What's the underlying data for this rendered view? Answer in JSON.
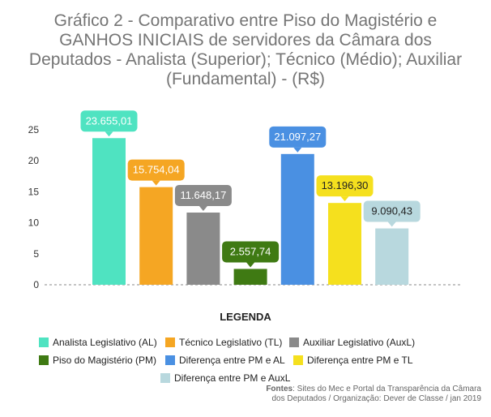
{
  "chart_data": {
    "type": "bar",
    "title": "Gráfico 2 - Comparativo entre Piso do Magistério e GANHOS INICIAIS de servidores da Câmara dos Deputados - Analista (Superior); Técnico (Médio); Auxiliar (Fundamental) - (R$)",
    "title_lines": [
      "Gráfico 2 - Comparativo entre Piso do Magistério e",
      "GANHOS INICIAIS de servidores da Câmara dos",
      "Deputados - Analista (Superior); Técnico (Médio); Auxiliar",
      "(Fundamental) - (R$)"
    ],
    "xlabel": "",
    "ylabel": "",
    "ylim": [
      0,
      25
    ],
    "yticks": [
      0,
      5,
      10,
      15,
      20,
      25
    ],
    "grid": false,
    "categories": [
      "Analista Legislativo (AL)",
      "Técnico Legislativo (TL)",
      "Auxiliar Legislativo (AuxL)",
      "Piso do Magistério (PM)",
      "Diferença entre PM e AL",
      "Diferença entre PM e TL",
      "Diferença entre PM e AuxL"
    ],
    "values": [
      23.655,
      15.754,
      11.648,
      2.558,
      21.097,
      13.196,
      9.09
    ],
    "data_labels": [
      "23.655,01",
      "15.754,04",
      "11.648,17",
      "2.557,74",
      "21.097,27",
      "13.196,30",
      "9.090,43"
    ],
    "colors": [
      "#4fe3c1",
      "#f5a623",
      "#8a8a8a",
      "#3f7a13",
      "#4a90e2",
      "#f5e01e",
      "#b8d8de"
    ],
    "label_text_colors": [
      "#ffffff",
      "#ffffff",
      "#ffffff",
      "#ffffff",
      "#ffffff",
      "#222222",
      "#222222"
    ],
    "legend_title": "LEGENDA",
    "legend_position": "bottom"
  },
  "source": {
    "prefix": "Fontes",
    "line1": ": Sites do Mec e Portal da Transparência da Câmara",
    "line2": "dos Deputados / Organização: Dever de Classe / jan 2019"
  }
}
